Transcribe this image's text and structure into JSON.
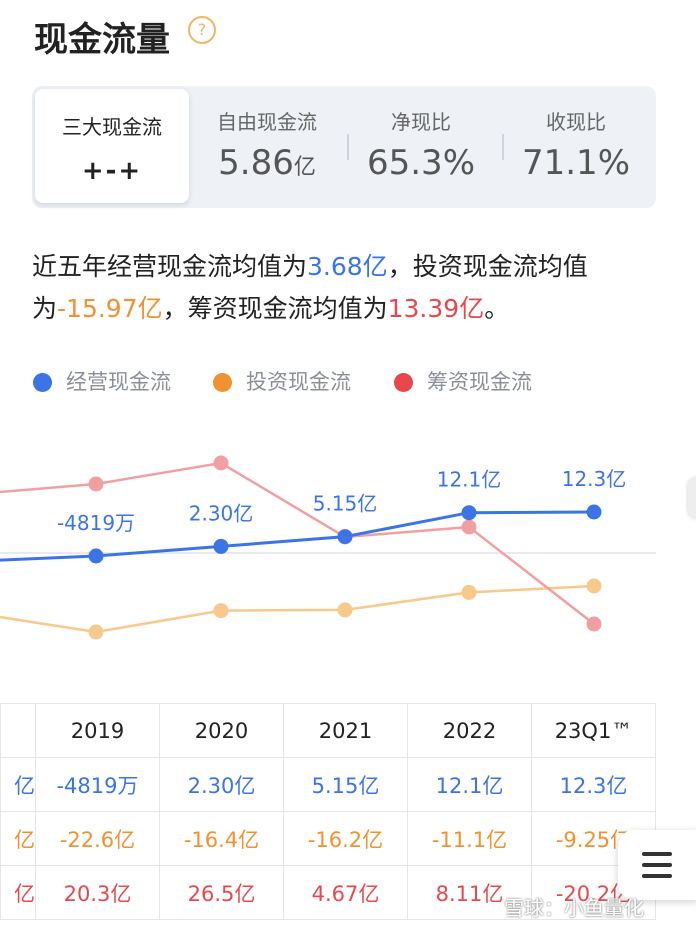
{
  "header": {
    "title": "现金流量",
    "help_icon": "?"
  },
  "summary": {
    "tab_label": "三大现金流",
    "tab_value": "+-+",
    "metrics": [
      {
        "label": "自由现金流",
        "value": "5.86",
        "unit": "亿"
      },
      {
        "label": "净现比",
        "value": "65.3%",
        "unit": ""
      },
      {
        "label": "收现比",
        "value": "71.1%",
        "unit": ""
      }
    ]
  },
  "description": {
    "p1": "近五年经营现金流均值为",
    "v1": "3.68亿",
    "p2": "，投资现金流均值为",
    "v2": "-15.97亿",
    "p3": "，筹资现金流均值为",
    "v3": "13.39亿",
    "p4": "。"
  },
  "legend": [
    {
      "label": "经营现金流",
      "color": "#3b74e6"
    },
    {
      "label": "投资现金流",
      "color": "#f2912f"
    },
    {
      "label": "筹资现金流",
      "color": "#e8484b"
    }
  ],
  "chart_data": {
    "type": "line",
    "categories": [
      "2019",
      "2020",
      "2021",
      "2022",
      "23Q1TTM"
    ],
    "series": [
      {
        "name": "经营现金流",
        "values": [
          -0.4819,
          2.3,
          5.15,
          12.1,
          12.3
        ],
        "labels": [
          "-4819万",
          "2.30亿",
          "5.15亿",
          "12.1亿",
          "12.3亿"
        ],
        "color": "#3b74e6"
      },
      {
        "name": "投资现金流",
        "values": [
          -22.6,
          -16.4,
          -16.2,
          -11.1,
          -9.25
        ],
        "color": "#f9c98c"
      },
      {
        "name": "筹资现金流",
        "values": [
          20.3,
          26.5,
          4.67,
          8.11,
          -20.2
        ],
        "color": "#f0a0a3"
      }
    ],
    "partial_left_values": {
      "经营现金流": -1.8,
      "投资现金流": -17.8,
      "筹资现金流": 17.8
    },
    "ylabel": "",
    "xlabel": ""
  },
  "table": {
    "headers": [
      "2019",
      "2020",
      "2021",
      "2022",
      "23Q1™"
    ],
    "rows": [
      {
        "partial": "亿",
        "cells": [
          "-4819万",
          "2.30亿",
          "5.15亿",
          "12.1亿",
          "12.3亿"
        ],
        "color": "#3b74e6"
      },
      {
        "partial": "亿",
        "cells": [
          "-22.6亿",
          "-16.4亿",
          "-16.2亿",
          "-11.1亿",
          "-9.25亿"
        ],
        "color": "#f2912f"
      },
      {
        "partial": "亿",
        "cells": [
          "20.3亿",
          "26.5亿",
          "4.67亿",
          "8.11亿",
          "-20.2亿"
        ],
        "color": "#e8484b"
      }
    ]
  },
  "watermark": "雪球：小鱼量化"
}
